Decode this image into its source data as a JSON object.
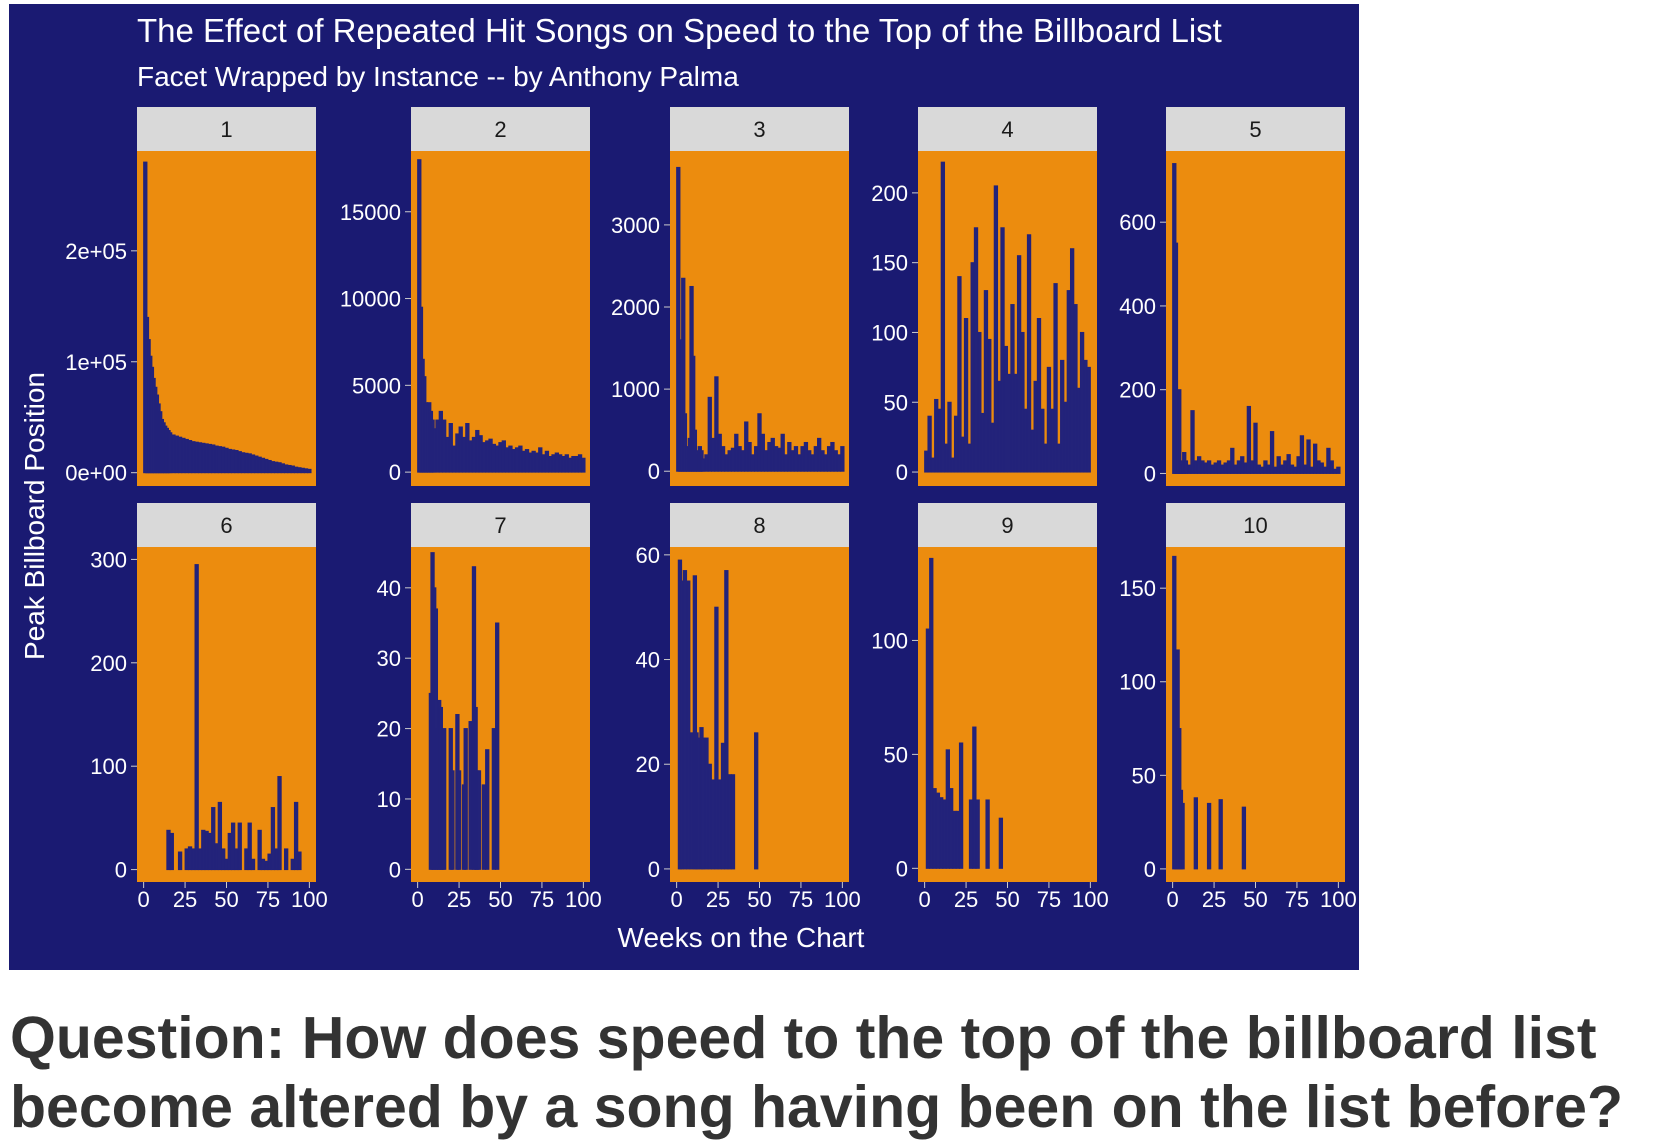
{
  "colors": {
    "background": "#1a1a72",
    "panel": "#ec8c0e",
    "strip": "#d9d9d9",
    "bars": "#23237a",
    "text_light": "#ffffff",
    "strip_text": "#1a1a1a",
    "question_text": "#333333"
  },
  "question": "Question: How does speed to the top of the billboard list become altered by a song having been on the list before?",
  "chart_data": {
    "type": "bar",
    "title": "The Effect of Repeated Hit Songs on Speed to the Top of the Billboard List",
    "subtitle": "Facet Wrapped by Instance -- by Anthony Palma",
    "xlabel": "Weeks on the Chart",
    "ylabel": "Peak Billboard Position",
    "xlim": [
      -4,
      104
    ],
    "x_ticks": [
      0,
      25,
      50,
      75,
      100
    ],
    "x_tick_labels": [
      "0",
      "25",
      "50",
      "75",
      "100"
    ],
    "scales": "free_y",
    "grid": false,
    "facets": [
      {
        "label": "1",
        "ylim": [
          -12000,
          290000
        ],
        "y_ticks": [
          0,
          100000,
          200000
        ],
        "y_tick_labels": [
          "0e+00",
          "1e+05",
          "2e+05"
        ],
        "x": [
          1,
          2,
          3,
          4,
          5,
          6,
          7,
          8,
          9,
          10,
          11,
          12,
          13,
          14,
          15,
          16,
          18,
          20,
          22,
          24,
          26,
          28,
          30,
          32,
          34,
          36,
          38,
          40,
          42,
          44,
          46,
          48,
          50,
          52,
          54,
          56,
          58,
          60,
          62,
          64,
          66,
          68,
          70,
          72,
          74,
          76,
          78,
          80,
          82,
          84,
          86,
          88,
          90,
          92,
          94,
          96,
          98,
          100
        ],
        "values": [
          280000,
          140000,
          120000,
          105000,
          95000,
          85000,
          77000,
          70000,
          62000,
          55000,
          48000,
          45000,
          42000,
          40000,
          38000,
          36000,
          34000,
          33000,
          32000,
          31000,
          30000,
          29000,
          28000,
          27500,
          27000,
          26500,
          26000,
          25500,
          25000,
          24000,
          23500,
          23000,
          22000,
          21000,
          20500,
          20000,
          19000,
          18000,
          17500,
          17000,
          16000,
          15000,
          14000,
          13000,
          12000,
          11000,
          10000,
          9500,
          9000,
          8000,
          7000,
          6500,
          6000,
          5000,
          4500,
          4000,
          3500,
          3000
        ]
      },
      {
        "label": "2",
        "ylim": [
          -800,
          18500
        ],
        "y_ticks": [
          0,
          5000,
          10000,
          15000
        ],
        "y_tick_labels": [
          "0",
          "5000",
          "10000",
          "15000"
        ],
        "x": [
          1,
          2,
          3,
          4,
          5,
          6,
          7,
          8,
          9,
          10,
          12,
          14,
          16,
          18,
          20,
          22,
          24,
          26,
          28,
          30,
          32,
          34,
          36,
          38,
          40,
          42,
          44,
          46,
          48,
          50,
          52,
          54,
          56,
          58,
          60,
          62,
          64,
          66,
          68,
          70,
          72,
          74,
          76,
          78,
          80,
          82,
          84,
          86,
          88,
          90,
          92,
          94,
          96,
          98,
          100
        ],
        "values": [
          18000,
          9500,
          6500,
          5500,
          4000,
          3800,
          4000,
          3500,
          3000,
          2500,
          3000,
          3500,
          3000,
          2000,
          2800,
          1500,
          2200,
          2600,
          2000,
          2800,
          1800,
          2000,
          2400,
          2100,
          1700,
          1800,
          1900,
          1600,
          1500,
          1700,
          1800,
          1400,
          1500,
          1300,
          1400,
          1500,
          1200,
          1300,
          1100,
          1200,
          1100,
          1400,
          1000,
          1200,
          900,
          1000,
          1100,
          1000,
          900,
          1000,
          800,
          900,
          900,
          1000,
          800
        ]
      },
      {
        "label": "3",
        "ylim": [
          -180,
          3900
        ],
        "y_ticks": [
          0,
          1000,
          2000,
          3000
        ],
        "y_tick_labels": [
          "0",
          "1000",
          "2000",
          "3000"
        ],
        "x": [
          1,
          2,
          3,
          4,
          5,
          6,
          7,
          8,
          9,
          10,
          11,
          12,
          13,
          14,
          15,
          16,
          18,
          20,
          22,
          24,
          26,
          28,
          30,
          32,
          34,
          36,
          38,
          40,
          42,
          44,
          46,
          48,
          50,
          52,
          54,
          56,
          58,
          60,
          62,
          64,
          66,
          68,
          70,
          72,
          74,
          76,
          78,
          80,
          82,
          84,
          86,
          88,
          90,
          92,
          94,
          96,
          98,
          100
        ],
        "values": [
          3700,
          1300,
          1600,
          2350,
          700,
          300,
          150,
          400,
          2250,
          1400,
          500,
          250,
          200,
          300,
          250,
          150,
          200,
          900,
          400,
          1150,
          450,
          300,
          200,
          250,
          280,
          450,
          300,
          250,
          600,
          350,
          200,
          300,
          700,
          450,
          250,
          350,
          400,
          300,
          280,
          450,
          200,
          350,
          250,
          300,
          200,
          300,
          350,
          250,
          200,
          300,
          400,
          250,
          200,
          300,
          350,
          250,
          200,
          300
        ]
      },
      {
        "label": "4",
        "ylim": [
          -10,
          230
        ],
        "y_ticks": [
          0,
          50,
          100,
          150,
          200
        ],
        "y_tick_labels": [
          "0",
          "50",
          "100",
          "150",
          "200"
        ],
        "x": [
          1,
          3,
          5,
          7,
          9,
          11,
          13,
          15,
          17,
          19,
          21,
          23,
          25,
          27,
          29,
          31,
          33,
          35,
          37,
          39,
          41,
          43,
          45,
          47,
          49,
          51,
          53,
          55,
          57,
          59,
          61,
          63,
          65,
          67,
          69,
          71,
          73,
          75,
          77,
          79,
          81,
          83,
          85,
          87,
          89,
          91,
          93,
          95,
          97,
          99
        ],
        "values": [
          15,
          40,
          10,
          52,
          45,
          222,
          20,
          50,
          10,
          40,
          140,
          25,
          110,
          20,
          150,
          175,
          100,
          42,
          130,
          95,
          35,
          205,
          65,
          175,
          90,
          70,
          120,
          70,
          155,
          100,
          45,
          170,
          30,
          65,
          110,
          45,
          20,
          75,
          45,
          135,
          20,
          80,
          50,
          130,
          160,
          120,
          60,
          100,
          80,
          75
        ]
      },
      {
        "label": "5",
        "ylim": [
          -30,
          770
        ],
        "y_ticks": [
          0,
          200,
          400,
          600
        ],
        "y_tick_labels": [
          "0",
          "200",
          "400",
          "600"
        ],
        "x": [
          1,
          2,
          3,
          4,
          5,
          6,
          7,
          8,
          10,
          12,
          14,
          16,
          18,
          20,
          22,
          24,
          26,
          28,
          30,
          32,
          34,
          36,
          38,
          40,
          42,
          44,
          46,
          48,
          50,
          52,
          54,
          56,
          58,
          60,
          62,
          64,
          66,
          68,
          70,
          72,
          74,
          76,
          78,
          80,
          82,
          84,
          86,
          88,
          90,
          92,
          94,
          96,
          98,
          100
        ],
        "values": [
          740,
          550,
          120,
          200,
          30,
          20,
          50,
          30,
          20,
          150,
          30,
          40,
          30,
          25,
          30,
          20,
          25,
          30,
          20,
          25,
          30,
          60,
          20,
          30,
          40,
          25,
          160,
          30,
          120,
          20,
          15,
          30,
          20,
          100,
          15,
          40,
          20,
          30,
          45,
          20,
          15,
          40,
          90,
          20,
          80,
          15,
          70,
          30,
          25,
          15,
          60,
          30,
          10,
          15
        ]
      },
      {
        "label": "6",
        "ylim": [
          -12,
          312
        ],
        "y_ticks": [
          0,
          100,
          200,
          300
        ],
        "y_tick_labels": [
          "0",
          "100",
          "200",
          "300"
        ],
        "x": [
          15,
          17,
          22,
          26,
          28,
          30,
          32,
          34,
          36,
          38,
          40,
          42,
          44,
          46,
          48,
          50,
          52,
          54,
          56,
          58,
          62,
          64,
          66,
          70,
          72,
          74,
          76,
          78,
          80,
          82,
          86,
          90,
          92,
          94
        ],
        "values": [
          38,
          35,
          17,
          20,
          22,
          20,
          295,
          20,
          38,
          37,
          35,
          60,
          25,
          65,
          20,
          10,
          35,
          45,
          20,
          45,
          20,
          45,
          10,
          38,
          10,
          8,
          15,
          60,
          20,
          90,
          20,
          10,
          65,
          17
        ]
      },
      {
        "label": "7",
        "ylim": [
          -1.8,
          45.8
        ],
        "y_ticks": [
          0,
          10,
          20,
          30,
          40
        ],
        "y_tick_labels": [
          "0",
          "10",
          "20",
          "30",
          "40"
        ],
        "x": [
          8,
          9,
          10,
          11,
          12,
          13,
          14,
          15,
          16,
          20,
          21,
          24,
          25,
          28,
          29,
          32,
          34,
          35,
          36,
          37,
          40,
          42,
          46,
          48
        ],
        "values": [
          25,
          45,
          40,
          37,
          20,
          24,
          23,
          16,
          20,
          20,
          14,
          22,
          14,
          12,
          20,
          21,
          43,
          23,
          14,
          14,
          12,
          17,
          20,
          35
        ]
      },
      {
        "label": "8",
        "ylim": [
          -2.5,
          61.5
        ],
        "y_ticks": [
          0,
          20,
          40,
          60
        ],
        "y_tick_labels": [
          "0",
          "20",
          "40",
          "60"
        ],
        "x": [
          2,
          3,
          5,
          7,
          9,
          11,
          12,
          13,
          15,
          16,
          18,
          20,
          22,
          24,
          26,
          28,
          30,
          32,
          34,
          48
        ],
        "values": [
          59,
          55,
          57,
          55,
          26,
          56,
          26,
          25,
          27,
          25,
          25,
          20,
          17,
          50,
          17,
          24,
          57,
          18,
          18,
          26
        ]
      },
      {
        "label": "9",
        "ylim": [
          -6,
          141
        ],
        "y_ticks": [
          0,
          50,
          100
        ],
        "y_tick_labels": [
          "0",
          "50",
          "100"
        ],
        "x": [
          2,
          4,
          6,
          8,
          10,
          12,
          14,
          16,
          18,
          20,
          22,
          28,
          30,
          32,
          38,
          46
        ],
        "values": [
          105,
          136,
          35,
          33,
          31,
          30,
          52,
          35,
          25,
          25,
          55,
          30,
          62,
          30,
          30,
          22
        ]
      },
      {
        "label": "10",
        "ylim": [
          -7,
          172
        ],
        "y_ticks": [
          0,
          50,
          100,
          150
        ],
        "y_tick_labels": [
          "0",
          "50",
          "100",
          "150"
        ],
        "x": [
          1,
          2,
          3,
          4,
          5,
          6,
          14,
          22,
          29,
          43
        ],
        "values": [
          167,
          90,
          117,
          75,
          42,
          35,
          38,
          35,
          37,
          33
        ]
      }
    ]
  }
}
